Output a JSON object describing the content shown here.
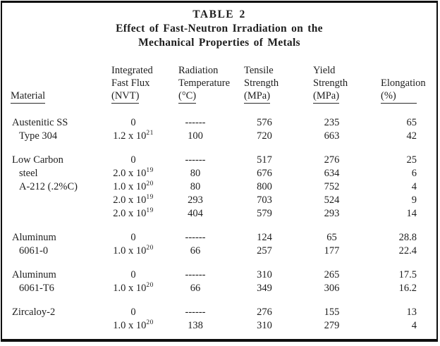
{
  "style": {
    "ink": "#1e1e1e",
    "border": "#0e0e0e",
    "background": "#ffffff"
  },
  "title": {
    "table_number": "TABLE 2",
    "line1": "Effect of Fast-Neutron Irradiation on the",
    "line2": "Mechanical Properties of Metals"
  },
  "header": {
    "material": "Material",
    "flux": {
      "l1": "Integrated",
      "l2": "Fast Flux",
      "l3": "(NVT)"
    },
    "temp": {
      "l1": "Radiation",
      "l2": "Temperature",
      "l3": "(°C)"
    },
    "tensile": {
      "l1": "Tensile",
      "l2": "Strength",
      "l3": "(MPa)"
    },
    "yield": {
      "l1": "Yield",
      "l2": "Strength",
      "l3": "(MPa)"
    },
    "elongation": {
      "l1": "Elongation",
      "l2": "(%)"
    }
  },
  "groups": [
    {
      "rows": [
        {
          "material": "Austenitic SS",
          "flux_base": "0",
          "flux_exp": "",
          "temp": "------",
          "tensile": "576",
          "yield": "235",
          "elongation": "65"
        },
        {
          "material": "Type 304",
          "flux_base": "1.2 x 10",
          "flux_exp": "21",
          "temp": "100",
          "tensile": "720",
          "yield": "663",
          "elongation": "42"
        }
      ]
    },
    {
      "rows": [
        {
          "material": "Low Carbon",
          "flux_base": "0",
          "flux_exp": "",
          "temp": "------",
          "tensile": "517",
          "yield": "276",
          "elongation": "25"
        },
        {
          "material": "steel",
          "flux_base": "2.0 x 10",
          "flux_exp": "19",
          "temp": "80",
          "tensile": "676",
          "yield": "634",
          "elongation": "6"
        },
        {
          "material": "A-212 (.2%C)",
          "flux_base": "1.0 x 10",
          "flux_exp": "20",
          "temp": "80",
          "tensile": "800",
          "yield": "752",
          "elongation": "4"
        },
        {
          "material": "",
          "flux_base": "2.0 x 10",
          "flux_exp": "19",
          "temp": "293",
          "tensile": "703",
          "yield": "524",
          "elongation": "9"
        },
        {
          "material": "",
          "flux_base": "2.0 x 10",
          "flux_exp": "19",
          "temp": "404",
          "tensile": "579",
          "yield": "293",
          "elongation": "14"
        }
      ]
    },
    {
      "rows": [
        {
          "material": "Aluminum",
          "flux_base": "0",
          "flux_exp": "",
          "temp": "------",
          "tensile": "124",
          "yield": "65",
          "elongation": "28.8"
        },
        {
          "material": "6061-0",
          "flux_base": "1.0 x 10",
          "flux_exp": "20",
          "temp": "66",
          "tensile": "257",
          "yield": "177",
          "elongation": "22.4"
        }
      ]
    },
    {
      "rows": [
        {
          "material": "Aluminum",
          "flux_base": "0",
          "flux_exp": "",
          "temp": "------",
          "tensile": "310",
          "yield": "265",
          "elongation": "17.5"
        },
        {
          "material": "6061-T6",
          "flux_base": "1.0 x 10",
          "flux_exp": "20",
          "temp": "66",
          "tensile": "349",
          "yield": "306",
          "elongation": "16.2"
        }
      ]
    },
    {
      "rows": [
        {
          "material": "Zircaloy-2",
          "flux_base": "0",
          "flux_exp": "",
          "temp": "------",
          "tensile": "276",
          "yield": "155",
          "elongation": "13"
        },
        {
          "material": "",
          "flux_base": "1.0 x 10",
          "flux_exp": "20",
          "temp": "138",
          "tensile": "310",
          "yield": "279",
          "elongation": "4"
        }
      ]
    }
  ]
}
